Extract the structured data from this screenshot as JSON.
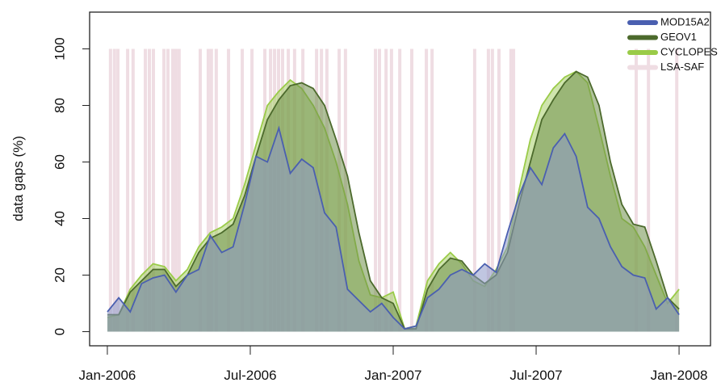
{
  "chart_data": {
    "type": "area",
    "y_label": "data gaps (%)",
    "x": [
      2006.0,
      2006.04,
      2006.08,
      2006.12,
      2006.16,
      2006.2,
      2006.24,
      2006.28,
      2006.32,
      2006.36,
      2006.4,
      2006.44,
      2006.48,
      2006.52,
      2006.56,
      2006.6,
      2006.64,
      2006.68,
      2006.72,
      2006.76,
      2006.8,
      2006.84,
      2006.88,
      2006.92,
      2006.96,
      2007.0,
      2007.04,
      2007.08,
      2007.12,
      2007.16,
      2007.2,
      2007.24,
      2007.28,
      2007.32,
      2007.36,
      2007.4,
      2007.44,
      2007.48,
      2007.52,
      2007.56,
      2007.6,
      2007.64,
      2007.68,
      2007.72,
      2007.76,
      2007.8,
      2007.84,
      2007.88,
      2007.92,
      2007.96,
      2008.0
    ],
    "series": [
      {
        "name": "MOD15A2",
        "color": "#4a5fb0",
        "fill": "#8c97c8",
        "values": [
          7,
          12,
          7,
          17,
          19,
          20,
          14,
          20,
          22,
          34,
          28,
          30,
          45,
          62,
          60,
          72,
          56,
          61,
          58,
          42,
          37,
          15,
          11,
          7,
          10,
          5,
          1,
          2,
          12,
          15,
          20,
          22,
          20,
          24,
          21,
          35,
          48,
          58,
          52,
          65,
          70,
          62,
          44,
          40,
          30,
          23,
          20,
          19,
          8,
          12,
          6
        ]
      },
      {
        "name": "GEOV1",
        "color": "#4c6a2c",
        "fill": "#6f8f4a",
        "values": [
          6,
          6,
          14,
          18,
          22,
          22,
          16,
          20,
          28,
          33,
          35,
          38,
          48,
          62,
          75,
          82,
          87,
          88,
          86,
          80,
          68,
          55,
          35,
          18,
          12,
          10,
          1,
          1,
          15,
          22,
          26,
          25,
          20,
          17,
          20,
          28,
          45,
          60,
          75,
          82,
          88,
          92,
          90,
          80,
          60,
          45,
          38,
          37,
          25,
          12,
          8
        ]
      },
      {
        "name": "CYCLOPES",
        "color": "#9acb48",
        "fill": "#a7cf6a",
        "values": [
          5,
          6,
          15,
          20,
          24,
          23,
          18,
          22,
          30,
          35,
          37,
          40,
          52,
          66,
          80,
          85,
          89,
          86,
          80,
          72,
          60,
          45,
          25,
          13,
          12,
          14,
          1,
          2,
          18,
          24,
          28,
          24,
          18,
          16,
          22,
          30,
          50,
          68,
          80,
          86,
          90,
          92,
          88,
          72,
          55,
          40,
          37,
          30,
          20,
          10,
          15
        ]
      },
      {
        "name": "LSA-SAF",
        "color": "#efdde3",
        "x": [
          2006.011,
          2006.025,
          2006.037,
          2006.071,
          2006.09,
          2006.133,
          2006.147,
          2006.161,
          2006.198,
          2006.212,
          2006.229,
          2006.24,
          2006.251,
          2006.325,
          2006.353,
          2006.364,
          2006.381,
          2006.424,
          2006.472,
          2006.506,
          2006.551,
          2006.571,
          2006.585,
          2006.599,
          2006.613,
          2006.633,
          2006.655,
          2006.684,
          2006.732,
          2006.749,
          2006.768,
          2006.811,
          2006.833,
          2006.938,
          2006.952,
          2006.975,
          2006.994,
          2007.023,
          2007.065,
          2007.116,
          2007.136,
          2007.285,
          2007.333,
          2007.347,
          2007.37,
          2007.412,
          2007.421,
          2007.85,
          2007.893,
          2007.992
        ],
        "values": [
          100,
          100,
          100,
          100,
          100,
          100,
          100,
          100,
          100,
          100,
          100,
          100,
          100,
          100,
          100,
          100,
          100,
          100,
          100,
          100,
          100,
          100,
          100,
          100,
          100,
          100,
          100,
          100,
          100,
          100,
          100,
          100,
          100,
          100,
          100,
          100,
          100,
          100,
          100,
          100,
          100,
          100,
          100,
          100,
          100,
          100,
          100,
          100,
          100,
          100
        ]
      }
    ],
    "xlim": [
      2005.938,
      2008.11
    ],
    "xticks": [
      {
        "value": 2006,
        "label": "Jan-2006"
      },
      {
        "value": 2006.5,
        "label": "Jul-2006"
      },
      {
        "value": 2007,
        "label": "Jan-2007"
      },
      {
        "value": 2007.5,
        "label": "Jul-2007"
      },
      {
        "value": 2008,
        "label": "Jan-2008"
      }
    ],
    "ylim": [
      -5,
      113
    ],
    "yticks": [
      0,
      20,
      40,
      60,
      80,
      100
    ],
    "legend": "top-right"
  }
}
